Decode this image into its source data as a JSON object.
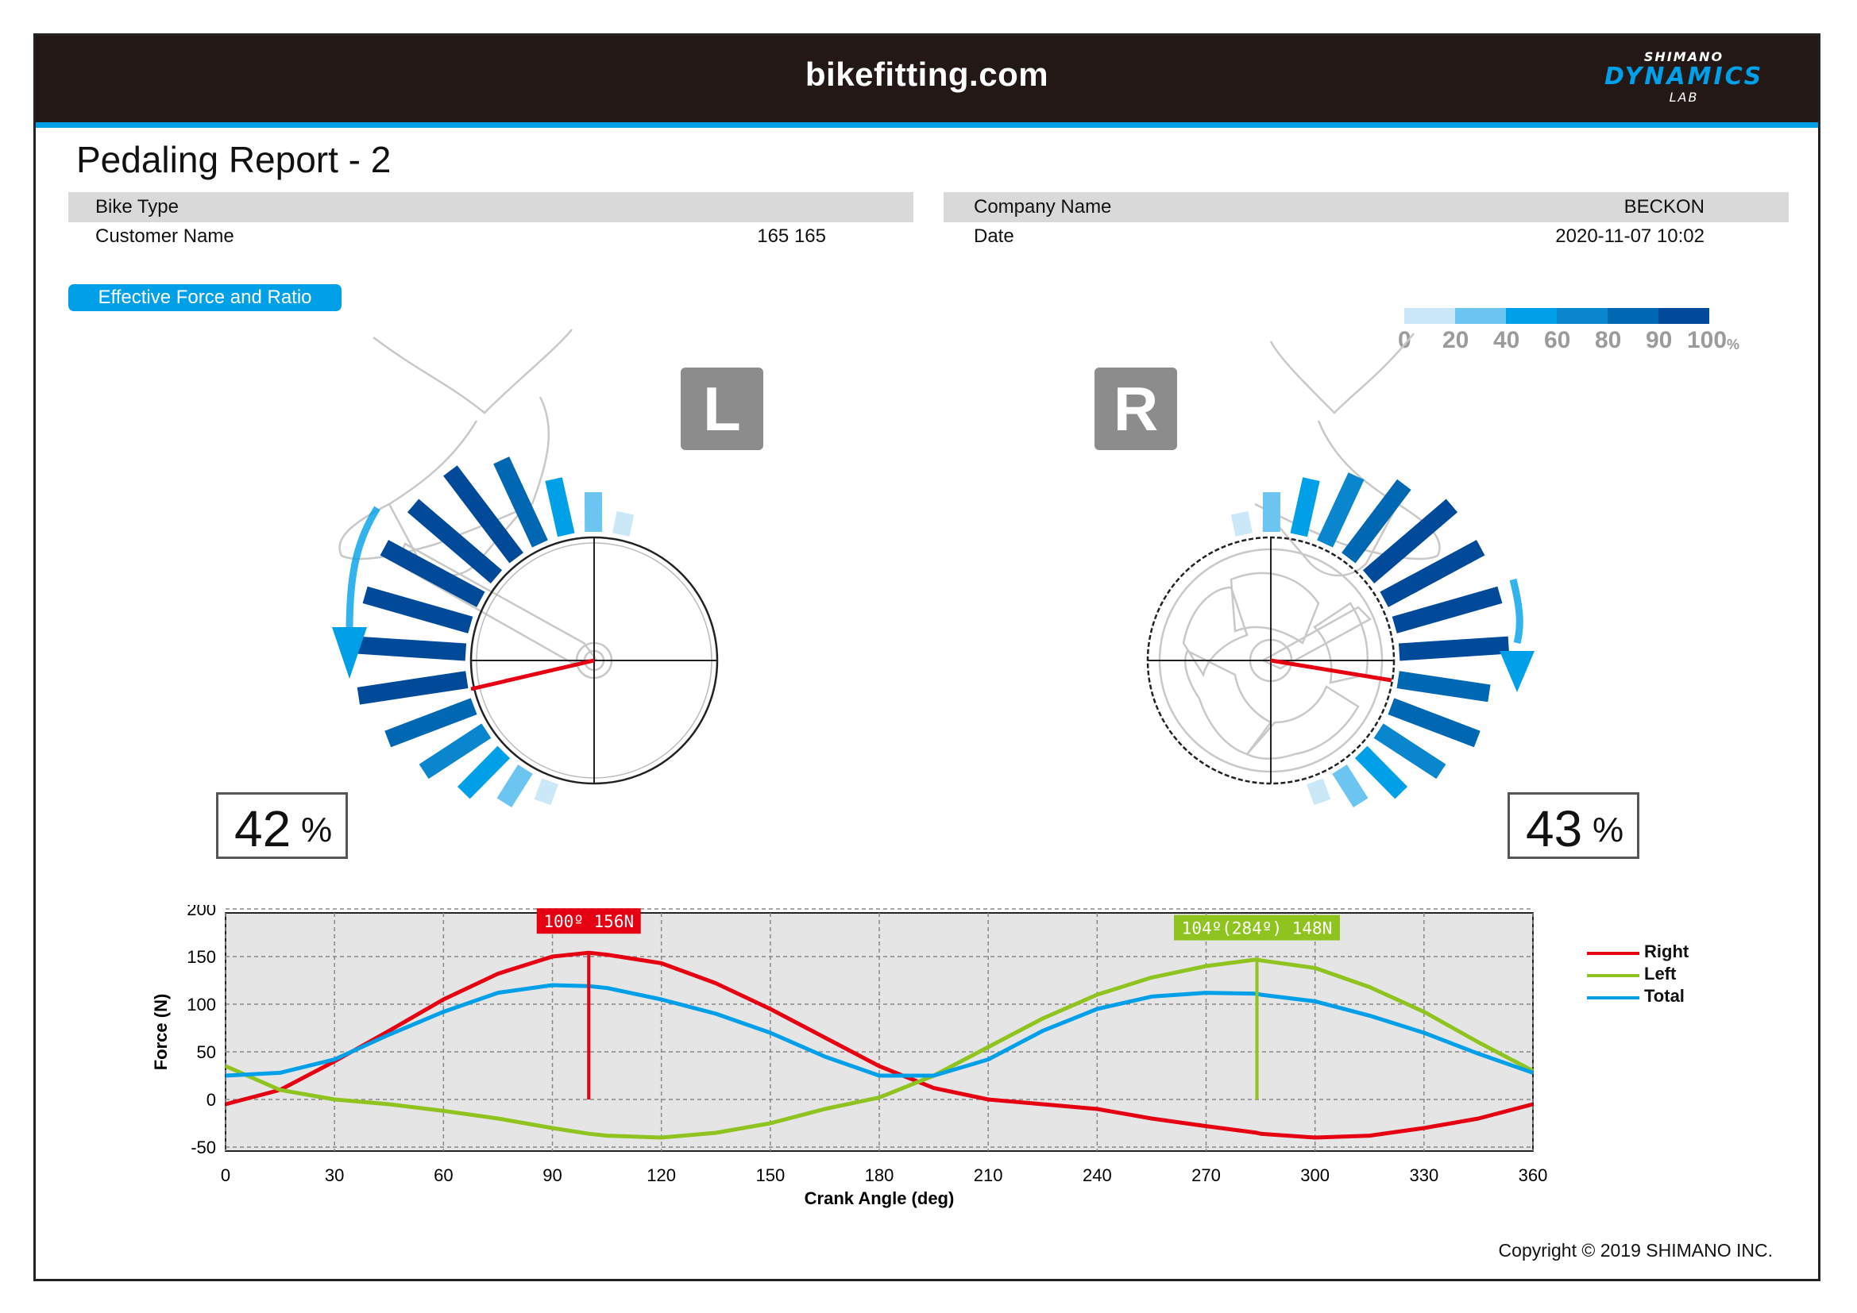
{
  "header": {
    "brand": "bikefitting.com",
    "logo_line1": "SHIMANO",
    "logo_line2": "DYNAMICS",
    "logo_line3": "LAB"
  },
  "report": {
    "title": "Pedaling Report - 2"
  },
  "info": {
    "bike_type_label": "Bike Type",
    "bike_type_value": "",
    "customer_name_label": "Customer Name",
    "customer_name_value": "165 165",
    "company_name_label": "Company Name",
    "company_name_value": "BECKON",
    "date_label": "Date",
    "date_value": "2020-11-07 10:02"
  },
  "section": {
    "label": "Effective Force and Ratio"
  },
  "scale": {
    "labels": [
      "0",
      "20",
      "40",
      "60",
      "80",
      "90",
      "100"
    ],
    "unit": "%",
    "colors": [
      "#cbe8f8",
      "#6cc5f0",
      "#00a0e9",
      "#0a86cf",
      "#0067b3",
      "#004a99"
    ]
  },
  "left": {
    "side_label": "L",
    "ratio": "42",
    "pct": "%"
  },
  "right": {
    "side_label": "R",
    "ratio": "43",
    "pct": "%"
  },
  "chart_data": {
    "type": "line",
    "xlabel": "Crank Angle (deg)",
    "ylabel": "Force (N)",
    "xlim": [
      0,
      360
    ],
    "ylim": [
      -50,
      200
    ],
    "xticks": [
      "0",
      "30",
      "60",
      "90",
      "120",
      "150",
      "180",
      "210",
      "240",
      "270",
      "300",
      "330",
      "360"
    ],
    "yticks": [
      "200",
      "150",
      "100",
      "50",
      "0",
      "-50"
    ],
    "grid": true,
    "legend_position": "right",
    "x": [
      0,
      15,
      30,
      45,
      60,
      75,
      90,
      100,
      105,
      120,
      135,
      150,
      165,
      180,
      195,
      210,
      225,
      240,
      255,
      270,
      284,
      285,
      300,
      315,
      330,
      345,
      360
    ],
    "series": [
      {
        "name": "Right",
        "color": "#e50012",
        "values": [
          -5,
          10,
          40,
          72,
          105,
          132,
          150,
          154,
          152,
          143,
          122,
          95,
          65,
          35,
          12,
          0,
          -5,
          -10,
          -20,
          -28,
          -35,
          -36,
          -40,
          -38,
          -30,
          -20,
          -5
        ]
      },
      {
        "name": "Left",
        "color": "#8fc31f",
        "values": [
          35,
          10,
          0,
          -5,
          -12,
          -20,
          -30,
          -36,
          -38,
          -40,
          -35,
          -25,
          -10,
          2,
          25,
          55,
          85,
          110,
          128,
          140,
          147,
          146,
          138,
          118,
          92,
          60,
          30
        ]
      },
      {
        "name": "Total",
        "color": "#00a0e9",
        "values": [
          25,
          28,
          42,
          68,
          92,
          112,
          120,
          119,
          117,
          105,
          90,
          70,
          45,
          25,
          25,
          42,
          72,
          95,
          108,
          112,
          111,
          110,
          103,
          88,
          70,
          48,
          28
        ]
      }
    ],
    "annotations": [
      {
        "label": "100º 156N",
        "x": 100,
        "y": 154,
        "color": "#e50012"
      },
      {
        "label": "104º(284º) 148N",
        "x": 284,
        "y": 147,
        "color": "#8fc31f"
      }
    ]
  },
  "footer": {
    "copyright": "Copyright © 2019 SHIMANO INC."
  }
}
